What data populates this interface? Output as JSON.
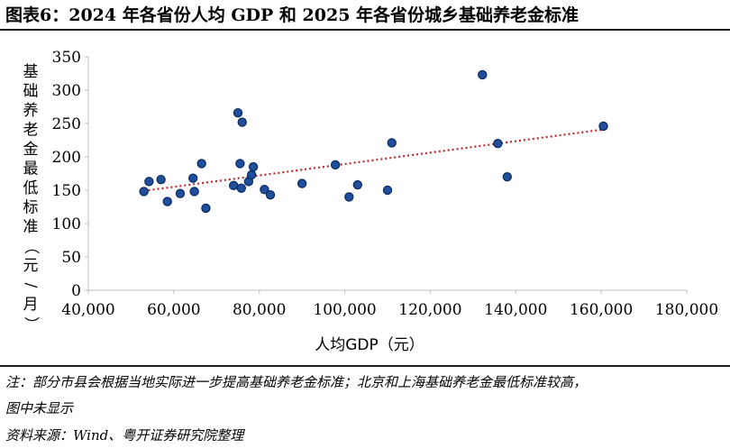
{
  "title": "图表6：2024 年各省份人均 GDP 和 2025 年各省份城乡基础养老金标准",
  "notes": {
    "line1": "注：部分市县会根据当地实际进一步提高基础养老金标准；北京和上海基础养老金最低标准较高，",
    "line2": "图中未显示",
    "source": "资料来源：Wind、粤开证券研究院整理"
  },
  "colors": {
    "point_fill": "#1f4e9c",
    "point_edge": "#0c2a5e",
    "trend": "#c0272d",
    "axis": "#bfbfbf"
  },
  "chart_data": {
    "type": "scatter",
    "xlabel": "人均GDP（元）",
    "ylabel": "基础养老金最低标准（元/月）",
    "xlim": [
      40000,
      180000
    ],
    "ylim": [
      0,
      350
    ],
    "x_ticks": [
      40000,
      60000,
      80000,
      100000,
      120000,
      140000,
      160000,
      180000
    ],
    "x_tick_labels": [
      "40,000",
      "60,000",
      "80,000",
      "100,000",
      "120,000",
      "140,000",
      "160,000",
      "180,000"
    ],
    "y_ticks": [
      0,
      50,
      100,
      150,
      200,
      250,
      300,
      350
    ],
    "y_tick_labels": [
      "0",
      "50",
      "100",
      "150",
      "200",
      "250",
      "300",
      "350"
    ],
    "grid": false,
    "points": [
      [
        53000,
        148
      ],
      [
        54200,
        163
      ],
      [
        57000,
        166
      ],
      [
        58500,
        133
      ],
      [
        61500,
        145
      ],
      [
        64500,
        168
      ],
      [
        64800,
        148
      ],
      [
        66500,
        190
      ],
      [
        67500,
        123
      ],
      [
        74000,
        157
      ],
      [
        75000,
        266
      ],
      [
        75500,
        190
      ],
      [
        75800,
        153
      ],
      [
        76000,
        252
      ],
      [
        77500,
        163
      ],
      [
        78200,
        173
      ],
      [
        78600,
        185
      ],
      [
        81200,
        151
      ],
      [
        82600,
        143
      ],
      [
        90000,
        160
      ],
      [
        97800,
        188
      ],
      [
        101000,
        140
      ],
      [
        103000,
        158
      ],
      [
        110000,
        150
      ],
      [
        111000,
        221
      ],
      [
        132200,
        323
      ],
      [
        135800,
        220
      ],
      [
        138000,
        170
      ],
      [
        160500,
        246
      ]
    ],
    "trendline": {
      "x": [
        53000,
        160500
      ],
      "y": [
        149,
        241
      ]
    }
  }
}
